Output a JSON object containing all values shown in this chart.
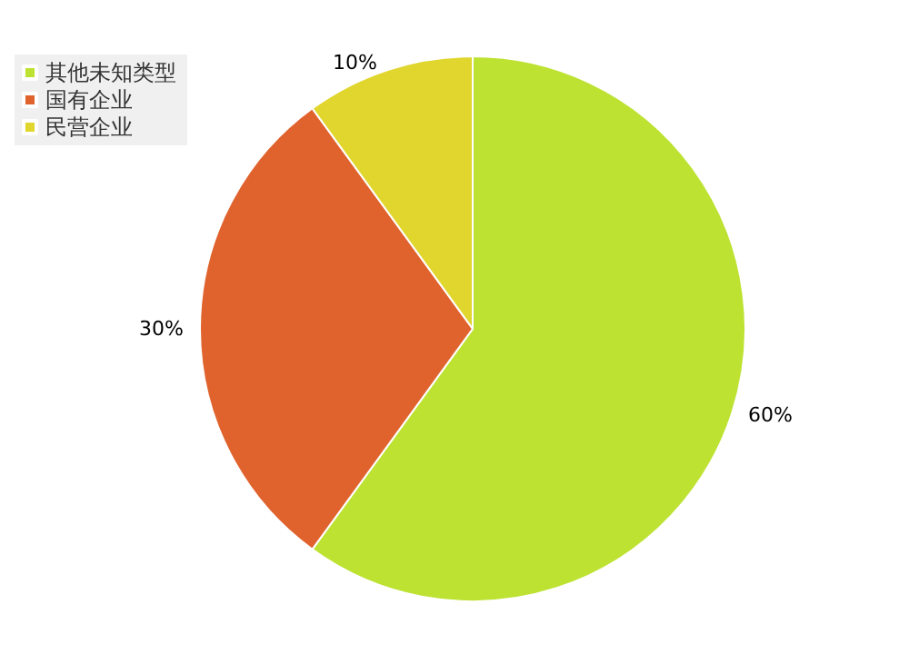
{
  "chart_data": {
    "type": "pie",
    "categories": [
      "其他未知类型",
      "国有企业",
      "民营企业"
    ],
    "values": [
      60,
      30,
      10
    ],
    "colors": [
      "#bde232",
      "#e0632e",
      "#e0d62e"
    ],
    "value_labels": [
      "60%",
      "30%",
      "10%"
    ],
    "legend": "top left"
  }
}
